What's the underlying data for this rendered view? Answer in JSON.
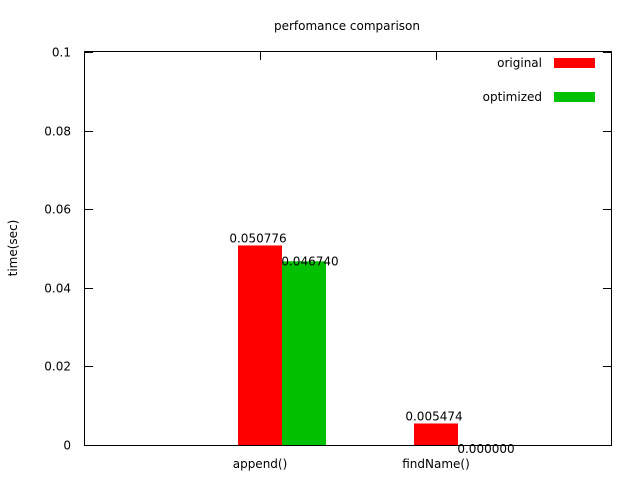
{
  "chart_data": {
    "type": "bar",
    "title": "perfomance comparison",
    "xlabel": "",
    "ylabel": "time(sec)",
    "ylim": [
      0,
      0.1
    ],
    "yticks": [
      "0",
      "0.02",
      "0.04",
      "0.06",
      "0.08",
      "0.1"
    ],
    "ytick_values": [
      0,
      0.02,
      0.04,
      0.06,
      0.08,
      0.1
    ],
    "categories": [
      "append()",
      "findName()"
    ],
    "series": [
      {
        "name": "original",
        "color": "#ff0000",
        "values": [
          0.050776,
          0.005474
        ],
        "labels": [
          "0.050776",
          "0.005474"
        ]
      },
      {
        "name": "optimized",
        "color": "#00c000",
        "values": [
          0.04674,
          0.0
        ],
        "labels": [
          "0.046740",
          "0.000000"
        ]
      }
    ],
    "legend_position": "top-right",
    "grid": false
  }
}
